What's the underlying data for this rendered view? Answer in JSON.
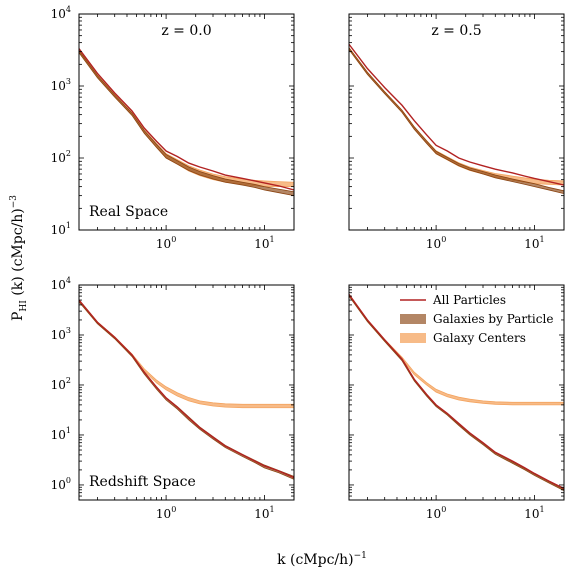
{
  "figure": {
    "xlabel": "k (cMpc/h)",
    "xlabel_exp": "−1",
    "ylabel": "P",
    "ylabel_sub": "HI",
    "ylabel_rest": " (k) (cMpc/h)",
    "ylabel_exp": "−3"
  },
  "legend": {
    "all_particles": "All Particles",
    "galaxies_by_particle": "Galaxies by Particle",
    "galaxy_centers": "Galaxy Centers"
  },
  "colors": {
    "all_particles": "#b22222",
    "galaxies_by_particle": "#8b4513",
    "galaxy_centers": "#f4a460"
  },
  "chart_data": [
    {
      "type": "line",
      "title": "z = 0.0",
      "annotation": "Real Space",
      "xscale": "log",
      "yscale": "log",
      "xlim": [
        0.13,
        20
      ],
      "ylim": [
        10,
        10000
      ],
      "x_ticks": [
        {
          "b": "10",
          "e": "0"
        },
        {
          "b": "10",
          "e": "1"
        }
      ],
      "y_ticks": [
        {
          "b": "10",
          "e": "1"
        },
        {
          "b": "10",
          "e": "2"
        },
        {
          "b": "10",
          "e": "3"
        },
        {
          "b": "10",
          "e": "4"
        }
      ],
      "x": [
        0.13,
        0.2,
        0.3,
        0.45,
        0.6,
        0.8,
        1.0,
        1.3,
        1.7,
        2.2,
        3,
        4,
        6,
        8,
        10,
        14,
        20
      ],
      "series": [
        {
          "name": "All Particles",
          "kind": "line",
          "color": "#b22222",
          "values": [
            3300,
            1500,
            800,
            450,
            260,
            170,
            125,
            105,
            85,
            75,
            66,
            58,
            52,
            48,
            45,
            41,
            36
          ]
        },
        {
          "name": "Galaxies by Particle",
          "kind": "band",
          "color": "#8b4513",
          "lower": [
            2900,
            1300,
            700,
            390,
            220,
            140,
            100,
            82,
            67,
            58,
            51,
            46,
            42,
            39,
            36,
            33,
            30
          ],
          "upper": [
            3100,
            1400,
            750,
            420,
            240,
            155,
            112,
            92,
            75,
            65,
            57,
            51,
            46,
            43,
            40,
            37,
            34
          ]
        },
        {
          "name": "Galaxy Centers",
          "kind": "band",
          "color": "#f4a460",
          "lower": [
            2950,
            1320,
            710,
            395,
            222,
            140,
            100,
            82,
            66,
            57,
            50,
            46,
            43,
            41,
            40,
            40,
            40
          ],
          "upper": [
            3150,
            1420,
            760,
            425,
            245,
            158,
            115,
            95,
            78,
            68,
            60,
            55,
            51,
            49,
            48,
            47,
            46
          ]
        }
      ]
    },
    {
      "type": "line",
      "title": "z = 0.5",
      "annotation": "",
      "xscale": "log",
      "yscale": "log",
      "xlim": [
        0.13,
        20
      ],
      "ylim": [
        10,
        10000
      ],
      "x_ticks": [
        {
          "b": "10",
          "e": "0"
        },
        {
          "b": "10",
          "e": "1"
        }
      ],
      "y_ticks": [],
      "x": [
        0.13,
        0.2,
        0.3,
        0.45,
        0.6,
        0.8,
        1.0,
        1.3,
        1.7,
        2.2,
        3,
        4,
        6,
        8,
        10,
        14,
        20
      ],
      "series": [
        {
          "name": "All Particles",
          "kind": "line",
          "color": "#b22222",
          "values": [
            3800,
            1750,
            950,
            540,
            330,
            210,
            150,
            125,
            100,
            88,
            78,
            70,
            62,
            56,
            52,
            47,
            42
          ]
        },
        {
          "name": "Galaxies by Particle",
          "kind": "band",
          "color": "#8b4513",
          "lower": [
            3200,
            1450,
            780,
            430,
            250,
            160,
            115,
            95,
            78,
            68,
            60,
            53,
            47,
            43,
            40,
            36,
            32
          ],
          "upper": [
            3400,
            1550,
            830,
            460,
            270,
            173,
            124,
            102,
            84,
            73,
            65,
            58,
            51,
            47,
            44,
            39,
            35
          ]
        },
        {
          "name": "Galaxy Centers",
          "kind": "band",
          "color": "#f4a460",
          "lower": [
            3220,
            1460,
            785,
            432,
            252,
            160,
            114,
            94,
            77,
            67,
            60,
            54,
            49,
            46,
            44,
            43,
            42
          ],
          "upper": [
            3420,
            1560,
            835,
            462,
            272,
            175,
            126,
            104,
            86,
            75,
            67,
            61,
            56,
            53,
            51,
            49,
            48
          ]
        }
      ]
    },
    {
      "type": "line",
      "title": "",
      "annotation": "Redshift Space",
      "xscale": "log",
      "yscale": "log",
      "xlim": [
        0.13,
        20
      ],
      "ylim": [
        0.5,
        10000
      ],
      "x_ticks": [
        {
          "b": "10",
          "e": "0"
        },
        {
          "b": "10",
          "e": "1"
        }
      ],
      "y_ticks": [
        {
          "b": "10",
          "e": "0"
        },
        {
          "b": "10",
          "e": "1"
        },
        {
          "b": "10",
          "e": "2"
        },
        {
          "b": "10",
          "e": "3"
        },
        {
          "b": "10",
          "e": "4"
        }
      ],
      "x": [
        0.13,
        0.2,
        0.3,
        0.45,
        0.6,
        0.8,
        1.0,
        1.3,
        1.7,
        2.2,
        3,
        4,
        6,
        8,
        10,
        14,
        20
      ],
      "series": [
        {
          "name": "All Particles",
          "kind": "line",
          "color": "#b22222",
          "values": [
            5000,
            1800,
            900,
            400,
            180,
            90,
            55,
            36,
            22,
            14,
            9,
            6,
            4,
            3,
            2.4,
            1.9,
            1.4
          ]
        },
        {
          "name": "Galaxies by Particle",
          "kind": "band",
          "color": "#8b4513",
          "lower": [
            4600,
            1680,
            840,
            370,
            165,
            82,
            50,
            33,
            20,
            13,
            8.3,
            5.6,
            3.7,
            2.8,
            2.2,
            1.75,
            1.3
          ],
          "upper": [
            5000,
            1820,
            910,
            405,
            182,
            92,
            56,
            37,
            23,
            14.5,
            9.3,
            6.2,
            4.1,
            3.1,
            2.5,
            1.95,
            1.48
          ]
        },
        {
          "name": "Galaxy Centers",
          "kind": "band",
          "color": "#f4a460",
          "lower": [
            4650,
            1700,
            850,
            380,
            190,
            110,
            80,
            60,
            48,
            42,
            38,
            36,
            35,
            35,
            35,
            35,
            35
          ],
          "upper": [
            5050,
            1840,
            920,
            415,
            210,
            125,
            92,
            70,
            56,
            48,
            44,
            42,
            41,
            41,
            41,
            41,
            41
          ]
        }
      ]
    },
    {
      "type": "line",
      "title": "",
      "annotation": "",
      "xscale": "log",
      "yscale": "log",
      "xlim": [
        0.13,
        20
      ],
      "ylim": [
        0.5,
        10000
      ],
      "x_ticks": [
        {
          "b": "10",
          "e": "0"
        },
        {
          "b": "10",
          "e": "1"
        }
      ],
      "y_ticks": [],
      "x": [
        0.13,
        0.2,
        0.3,
        0.45,
        0.6,
        0.8,
        1.0,
        1.3,
        1.7,
        2.2,
        3,
        4,
        6,
        8,
        10,
        14,
        20
      ],
      "series": [
        {
          "name": "All Particles",
          "kind": "line",
          "color": "#b22222",
          "values": [
            6500,
            2000,
            800,
            330,
            130,
            65,
            40,
            27,
            17,
            11,
            7,
            4.5,
            3,
            2.2,
            1.7,
            1.2,
            0.85
          ]
        },
        {
          "name": "Galaxies by Particle",
          "kind": "band",
          "color": "#8b4513",
          "lower": [
            6000,
            1850,
            740,
            305,
            120,
            60,
            37,
            25,
            15.5,
            10,
            6.4,
            4.1,
            2.7,
            2.0,
            1.55,
            1.1,
            0.77
          ]
        },
        {
          "name": "Galaxy Centers",
          "kind": "band",
          "color": "#f4a460",
          "lower": [
            6050,
            1870,
            750,
            330,
            160,
            100,
            72,
            58,
            50,
            46,
            43,
            41,
            40,
            40,
            40,
            40,
            40
          ],
          "upper": [
            6600,
            2030,
            815,
            360,
            180,
            112,
            82,
            66,
            57,
            52,
            48,
            46,
            45,
            45,
            45,
            45,
            45
          ]
        }
      ]
    }
  ]
}
